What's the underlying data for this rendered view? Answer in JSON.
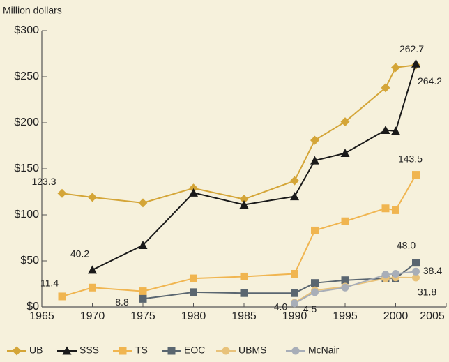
{
  "chart_data": {
    "type": "line",
    "ylabel": "Million dollars",
    "xlim": [
      1965,
      2005
    ],
    "xticks": [
      1965,
      1970,
      1975,
      1980,
      1985,
      1990,
      1995,
      2000,
      2005
    ],
    "ylim": [
      0,
      300
    ],
    "yticks": [
      {
        "value": 0,
        "label": "$0"
      },
      {
        "value": 50,
        "label": "$50"
      },
      {
        "value": 100,
        "label": "$100"
      },
      {
        "value": 150,
        "label": "$150"
      },
      {
        "value": 200,
        "label": "$200"
      },
      {
        "value": 250,
        "label": "$250"
      },
      {
        "value": 300,
        "label": "$300"
      }
    ],
    "grid": false,
    "legend": "bottom",
    "series": [
      {
        "name": "UB",
        "color": "#d4a537",
        "marker": "diamond",
        "x": [
          1967,
          1970,
          1975,
          1980,
          1985,
          1990,
          1992,
          1995,
          1999,
          2000,
          2002
        ],
        "values": [
          123.3,
          119,
          113,
          129,
          117,
          137,
          181,
          201,
          238,
          260,
          262.7
        ],
        "value_labels": [
          "123.3",
          null,
          null,
          null,
          null,
          null,
          null,
          null,
          null,
          null,
          "262.7"
        ]
      },
      {
        "name": "SSS",
        "color": "#1a1a1a",
        "marker": "triangle",
        "x": [
          1970,
          1975,
          1980,
          1985,
          1990,
          1992,
          1995,
          1999,
          2000,
          2002
        ],
        "values": [
          40.2,
          67,
          124,
          111,
          120,
          159,
          167,
          192,
          191,
          264.2
        ],
        "value_labels": [
          "40.2",
          null,
          null,
          null,
          null,
          null,
          null,
          null,
          null,
          "264.2"
        ]
      },
      {
        "name": "TS",
        "color": "#f0b550",
        "marker": "square",
        "x": [
          1967,
          1970,
          1975,
          1980,
          1985,
          1990,
          1992,
          1995,
          1999,
          2000,
          2002
        ],
        "values": [
          11.4,
          21,
          17,
          31,
          33,
          36,
          83,
          93,
          107,
          105,
          143.5
        ],
        "value_labels": [
          "11.4",
          null,
          null,
          null,
          null,
          null,
          null,
          null,
          null,
          null,
          "143.5"
        ]
      },
      {
        "name": "EOC",
        "color": "#5a6670",
        "marker": "square",
        "x": [
          1975,
          1980,
          1985,
          1990,
          1992,
          1995,
          1999,
          2000,
          2002
        ],
        "values": [
          8.8,
          16,
          15,
          15,
          26,
          29,
          31,
          31,
          48
        ],
        "value_labels": [
          "8.8",
          null,
          null,
          null,
          null,
          null,
          null,
          null,
          "48.0"
        ]
      },
      {
        "name": "UBMS",
        "color": "#e8c27a",
        "marker": "circle",
        "x": [
          1990,
          1992,
          1995,
          1999,
          2000,
          2002
        ],
        "values": [
          4.5,
          18,
          22,
          31,
          32,
          31.8
        ],
        "value_labels": [
          "4.5",
          null,
          null,
          null,
          null,
          "31.8"
        ]
      },
      {
        "name": "McNair",
        "color": "#a8aeb8",
        "marker": "circle",
        "x": [
          1990,
          1992,
          1995,
          1999,
          2000,
          2002
        ],
        "values": [
          4,
          16,
          21,
          35,
          36,
          38.4
        ],
        "value_labels": [
          "4.0",
          null,
          null,
          null,
          null,
          "38.4"
        ]
      }
    ]
  }
}
